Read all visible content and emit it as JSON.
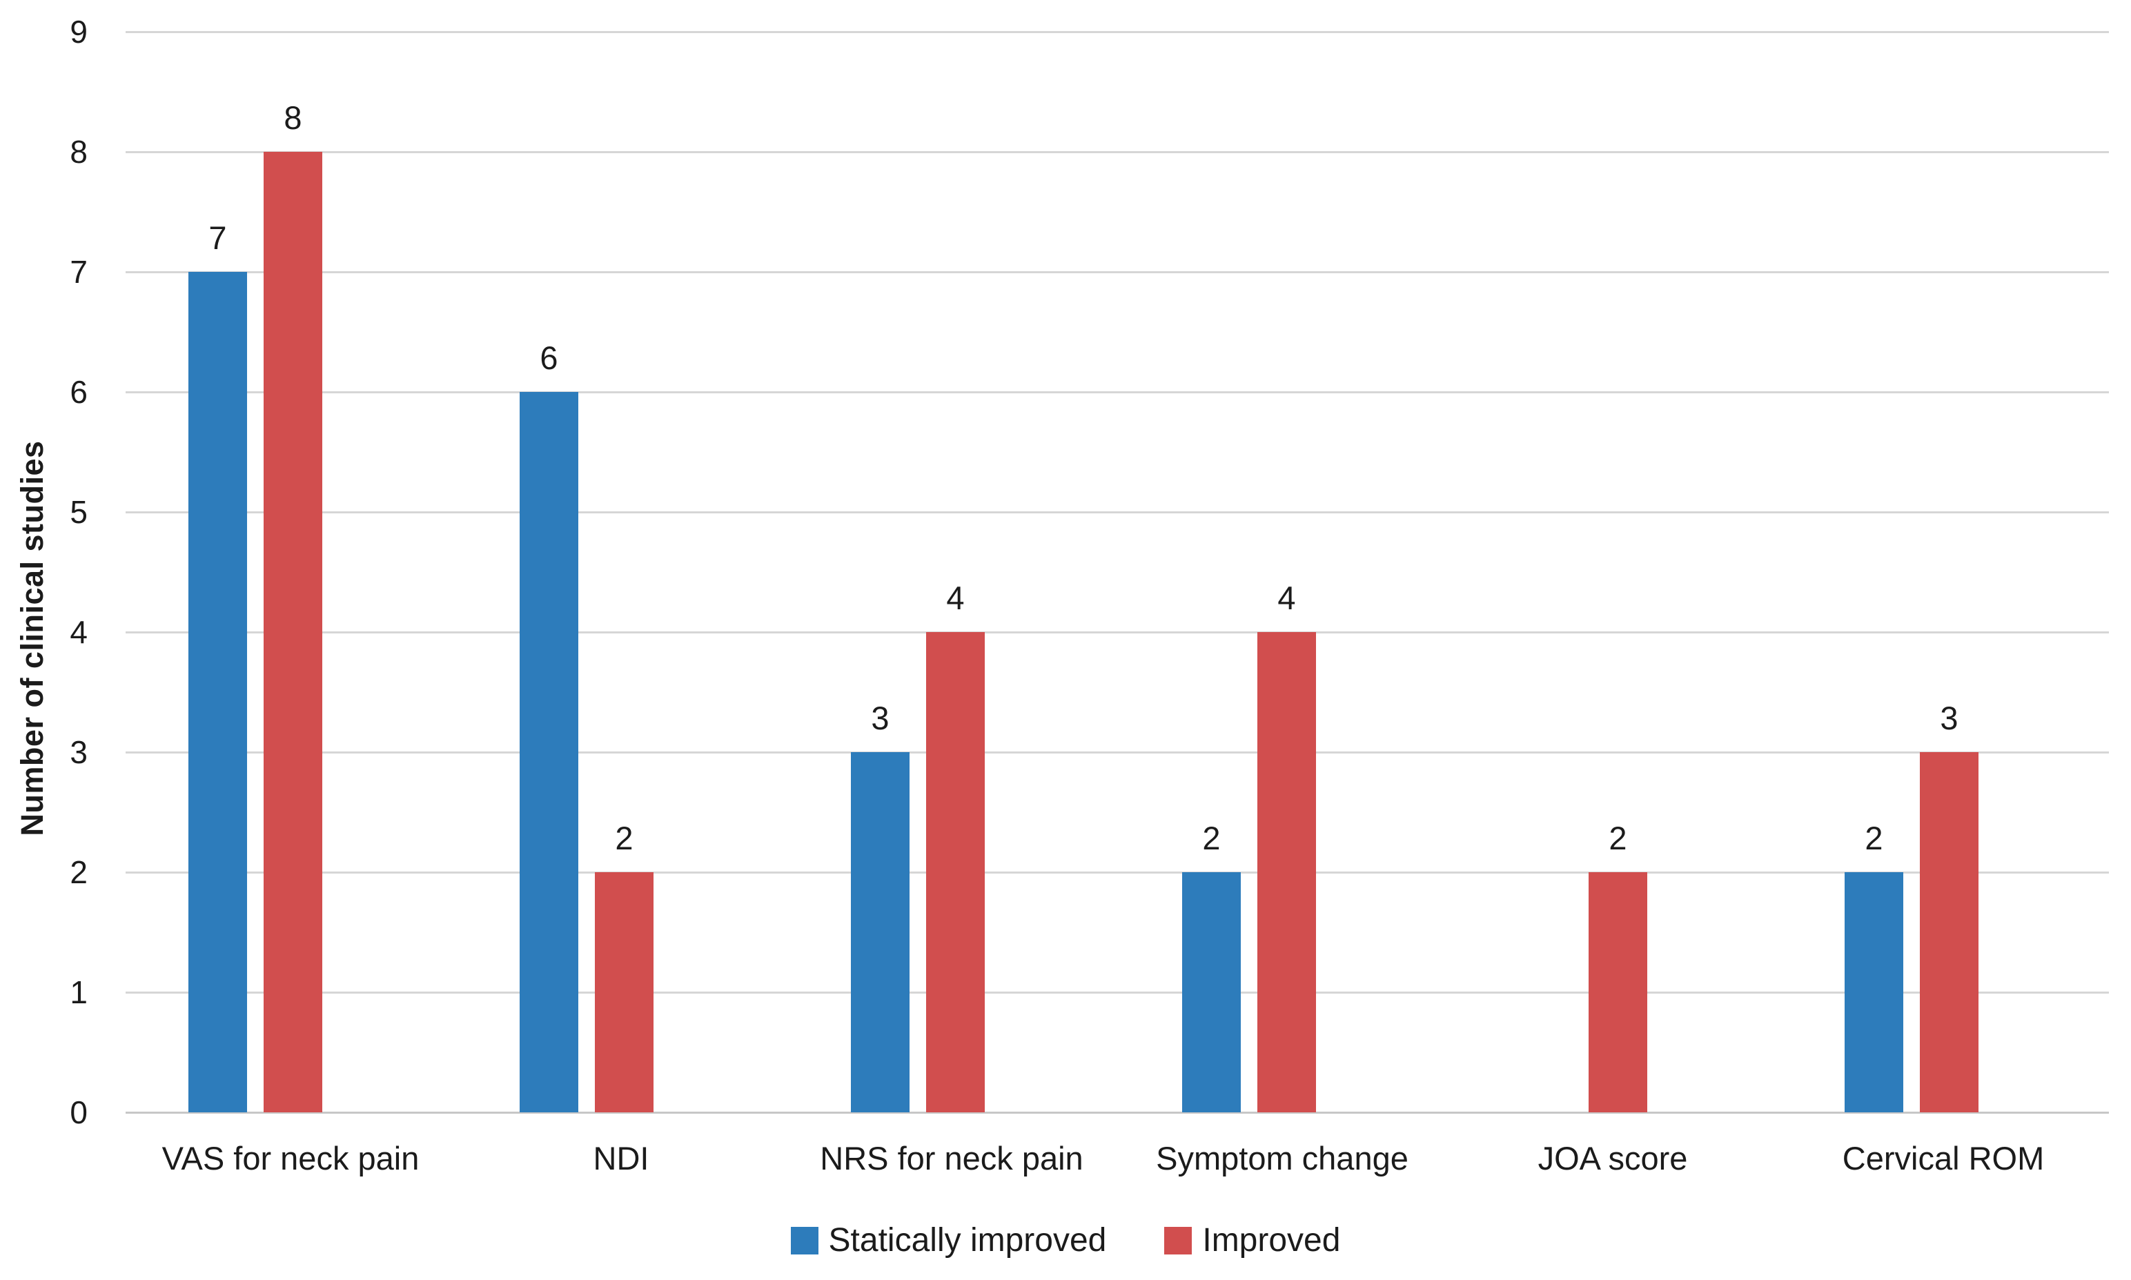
{
  "chart_data": {
    "type": "bar",
    "title": "",
    "ylabel": "Number of clinical studies",
    "xlabel": "",
    "ylim": [
      0,
      9
    ],
    "ytick_step": 1,
    "grid": "horizontal",
    "value_labels": true,
    "legend_position": "bottom-center",
    "categories": [
      "VAS for neck pain",
      "NDI",
      "NRS for neck pain",
      "Symptom change",
      "JOA score",
      "Cervical ROM"
    ],
    "series": [
      {
        "name": "Statically improved",
        "color": "#2D7CBB",
        "values": [
          7,
          6,
          3,
          2,
          0,
          2
        ]
      },
      {
        "name": "Improved",
        "color": "#D14E4E",
        "values": [
          8,
          2,
          4,
          4,
          2,
          3
        ]
      }
    ],
    "colors": {
      "text": "#1B1B1B",
      "gridline": "#D6D6D6",
      "axis_line": "#C7C7C7",
      "background": "#FFFFFF"
    }
  }
}
